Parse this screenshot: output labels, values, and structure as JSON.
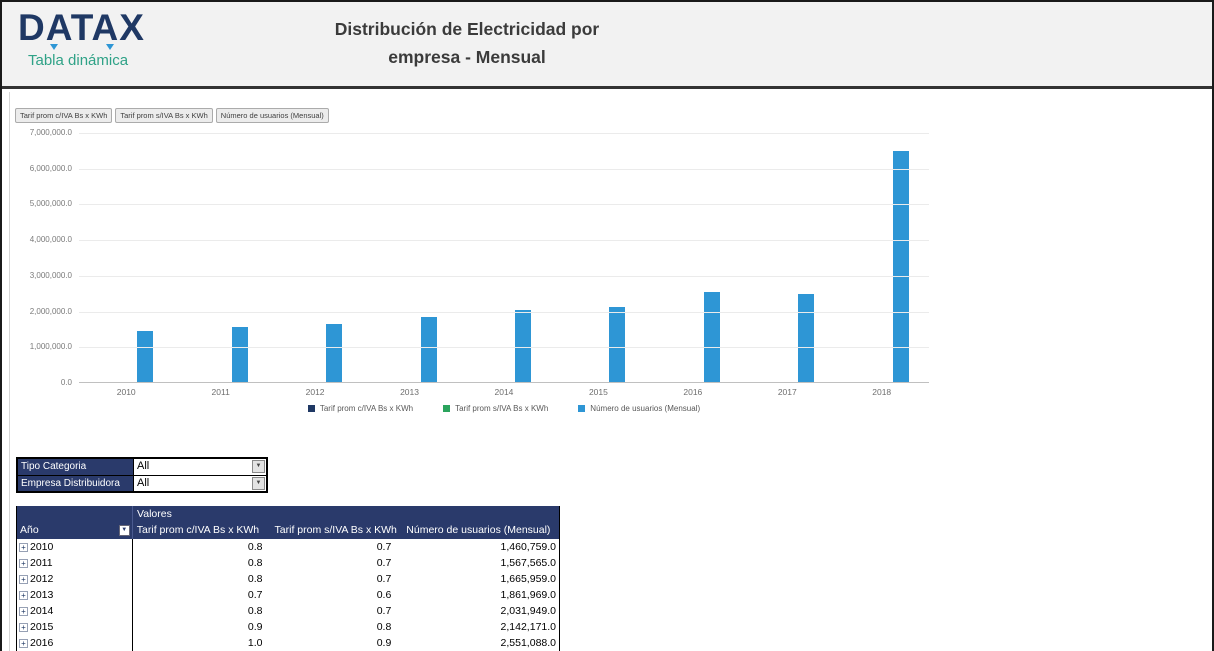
{
  "header": {
    "logo": "DATAX",
    "logo_sub": "Tabla dinámica",
    "title_line1": "Distribución de Electricidad por",
    "title_line2": "empresa - Mensual"
  },
  "chart": {
    "field_buttons": [
      "Tarif prom c/IVA Bs x KWh",
      "Tarif prom s/IVA Bs x KWh",
      "Número de usuarios (Mensual)"
    ]
  },
  "chart_data": {
    "type": "bar",
    "title": "",
    "xlabel": "",
    "ylabel": "",
    "categories": [
      "2010",
      "2011",
      "2012",
      "2013",
      "2014",
      "2015",
      "2016",
      "2017",
      "2018"
    ],
    "series": [
      {
        "name": "Tarif prom c/IVA Bs x KWh",
        "color": "#1F3864",
        "values": [
          0.8,
          0.8,
          0.8,
          0.7,
          0.8,
          0.9,
          1.0,
          null,
          null
        ]
      },
      {
        "name": "Tarif prom s/IVA Bs x KWh",
        "color": "#2BA45D",
        "values": [
          0.7,
          0.7,
          0.7,
          0.6,
          0.7,
          0.8,
          0.9,
          null,
          null
        ]
      },
      {
        "name": "Número de usuarios (Mensual)",
        "color": "#2E96D5",
        "values": [
          1460759,
          1567565,
          1665959,
          1861969,
          2031949,
          2142171,
          2551088,
          2490000,
          6490000
        ]
      }
    ],
    "ylim": [
      0,
      7000000
    ],
    "ytick_step": 1000000,
    "grid": true,
    "legend_position": "bottom"
  },
  "filters": [
    {
      "label": "Tipo Categoria",
      "value": "All"
    },
    {
      "label": "Empresa Distribuidora",
      "value": "All"
    }
  ],
  "pivot": {
    "values_header": "Valores",
    "row_header": "Año",
    "columns": [
      "Tarif prom c/IVA Bs x KWh",
      "Tarif prom s/IVA Bs x KWh",
      "Número de usuarios (Mensual)"
    ],
    "rows": [
      [
        "2010",
        "0.8",
        "0.7",
        "1,460,759.0"
      ],
      [
        "2011",
        "0.8",
        "0.7",
        "1,567,565.0"
      ],
      [
        "2012",
        "0.8",
        "0.7",
        "1,665,959.0"
      ],
      [
        "2013",
        "0.7",
        "0.6",
        "1,861,969.0"
      ],
      [
        "2014",
        "0.8",
        "0.7",
        "2,031,949.0"
      ],
      [
        "2015",
        "0.9",
        "0.8",
        "2,142,171.0"
      ],
      [
        "2016",
        "1.0",
        "0.9",
        "2,551,088.0"
      ]
    ]
  }
}
